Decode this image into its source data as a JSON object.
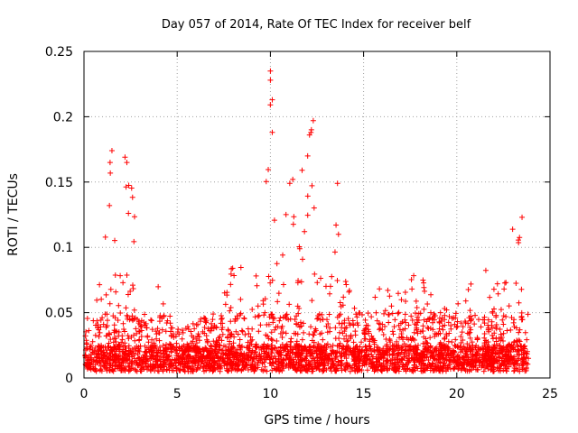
{
  "chart_data": {
    "type": "scatter",
    "title": "Day 057 of 2014, Rate Of TEC Index for receiver belf",
    "xlabel": "GPS time / hours",
    "ylabel": "ROTI / TECUs",
    "xlim": [
      0,
      25
    ],
    "ylim": [
      0,
      0.25
    ],
    "x_ticks": [
      0,
      5,
      10,
      15,
      20,
      25
    ],
    "x_tick_labels": [
      "0",
      "5",
      "10",
      "15",
      "20",
      "25"
    ],
    "y_ticks": [
      0,
      0.05,
      0.1,
      0.15,
      0.2,
      0.25
    ],
    "y_tick_labels": [
      "0",
      "0.05",
      "0.1",
      "0.15",
      "0.2",
      "0.25"
    ],
    "grid": true,
    "marker": "+",
    "color": "#ff0000",
    "envelope": {
      "x": [
        0.1,
        0.5,
        1.0,
        1.3,
        1.5,
        2.0,
        2.3,
        2.6,
        3.0,
        3.5,
        4.0,
        4.5,
        5.0,
        6.0,
        7.0,
        7.5,
        8.0,
        8.5,
        9.0,
        9.5,
        10.0,
        10.2,
        10.5,
        11.0,
        11.5,
        11.8,
        12.0,
        12.3,
        12.6,
        13.0,
        13.5,
        13.8,
        14.2,
        14.6,
        15.0,
        15.5,
        16.0,
        16.5,
        17.0,
        17.5,
        18.0,
        18.5,
        19.0,
        19.5,
        20.0,
        20.5,
        21.0,
        21.5,
        22.0,
        22.5,
        23.0,
        23.3,
        23.6,
        23.8
      ],
      "y": [
        0.045,
        0.05,
        0.09,
        0.16,
        0.17,
        0.07,
        0.16,
        0.14,
        0.08,
        0.07,
        0.08,
        0.06,
        0.035,
        0.04,
        0.045,
        0.06,
        0.09,
        0.085,
        0.075,
        0.09,
        0.235,
        0.12,
        0.11,
        0.15,
        0.16,
        0.12,
        0.19,
        0.195,
        0.1,
        0.09,
        0.15,
        0.08,
        0.07,
        0.06,
        0.05,
        0.055,
        0.08,
        0.06,
        0.06,
        0.085,
        0.075,
        0.08,
        0.07,
        0.07,
        0.085,
        0.08,
        0.06,
        0.085,
        0.065,
        0.08,
        0.11,
        0.105,
        0.125,
        0.06
      ]
    },
    "highlight_points": [
      {
        "x": 10.0,
        "y": 0.235
      },
      {
        "x": 10.0,
        "y": 0.228
      },
      {
        "x": 10.1,
        "y": 0.213
      },
      {
        "x": 10.1,
        "y": 0.188
      },
      {
        "x": 12.3,
        "y": 0.197
      },
      {
        "x": 12.2,
        "y": 0.19
      },
      {
        "x": 12.1,
        "y": 0.186
      },
      {
        "x": 12.0,
        "y": 0.17
      },
      {
        "x": 1.5,
        "y": 0.174
      },
      {
        "x": 1.4,
        "y": 0.165
      },
      {
        "x": 2.2,
        "y": 0.169
      },
      {
        "x": 2.3,
        "y": 0.165
      },
      {
        "x": 13.6,
        "y": 0.149
      },
      {
        "x": 11.7,
        "y": 0.159
      },
      {
        "x": 11.2,
        "y": 0.152
      },
      {
        "x": 23.5,
        "y": 0.123
      }
    ]
  }
}
